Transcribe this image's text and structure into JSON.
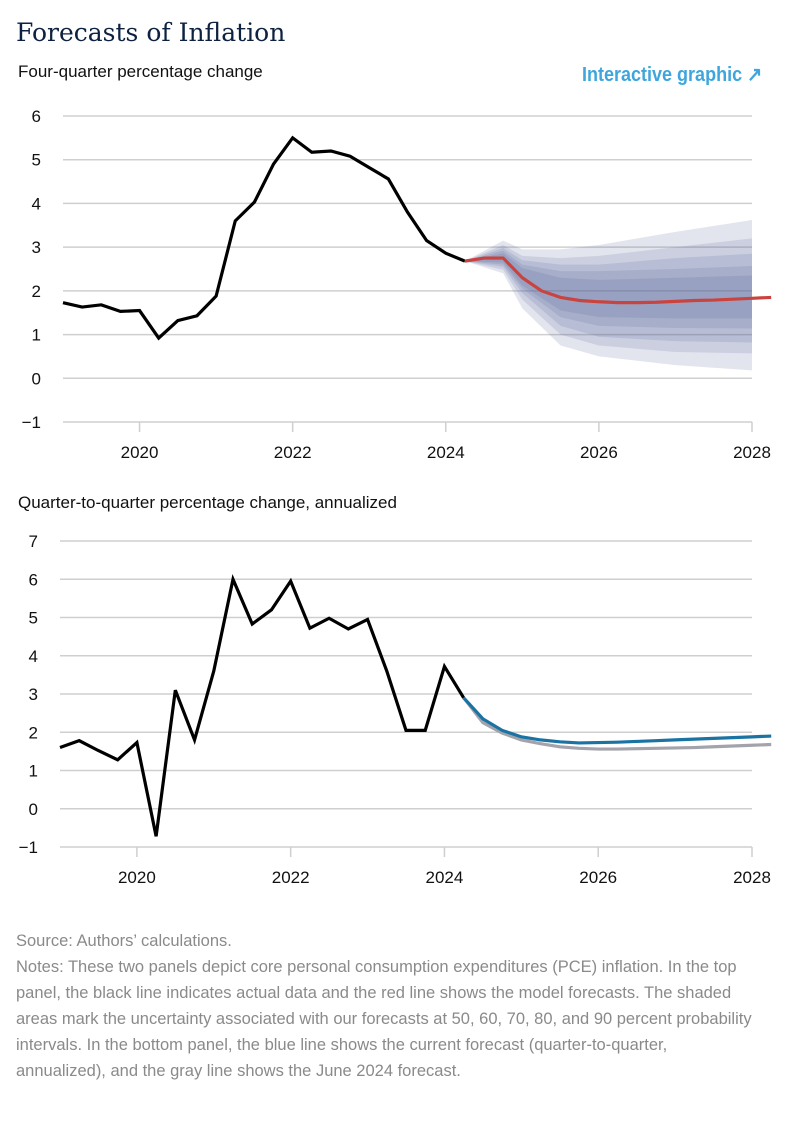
{
  "header": {
    "title": "Forecasts of Inflation",
    "link_label": "Interactive graphic",
    "link_icon": "arrow-up-right-icon",
    "link_color": "#3ea6dc"
  },
  "chart_data": [
    {
      "type": "line",
      "subtitle": "Four-quarter percentage change",
      "ylim": [
        -1,
        6
      ],
      "yticks": [
        "6",
        "5",
        "4",
        "3",
        "2",
        "1",
        "0",
        "−1"
      ],
      "ytick_values": [
        6,
        5,
        4,
        3,
        2,
        1,
        0,
        -1
      ],
      "xlim": [
        2019,
        2028
      ],
      "xticks": [
        "2020",
        "2022",
        "2024",
        "2026",
        "2028"
      ],
      "xtick_values": [
        2020,
        2022,
        2024,
        2026,
        2028
      ],
      "grid": true,
      "series": [
        {
          "name": "Actual",
          "color": "#000000",
          "x_start": 2019.0,
          "step": 0.25,
          "values": [
            1.73,
            1.63,
            1.68,
            1.53,
            1.55,
            0.92,
            1.32,
            1.43,
            1.88,
            3.6,
            4.03,
            4.9,
            5.5,
            5.17,
            5.2,
            5.08,
            4.82,
            4.56,
            3.8,
            3.15,
            2.86,
            2.68
          ]
        },
        {
          "name": "Model forecast",
          "color": "#c9443f",
          "x_start": 2024.25,
          "step": 0.25,
          "values": [
            2.68,
            2.75,
            2.75,
            2.3,
            2.0,
            1.85,
            1.78,
            1.75,
            1.73,
            1.73,
            1.74,
            1.76,
            1.78,
            1.79,
            1.81,
            1.83,
            1.85
          ]
        }
      ],
      "bands": {
        "color": "#5b6399",
        "x": [
          2024.25,
          2024.75,
          2025.0,
          2025.5,
          2026.0,
          2027.0,
          2028.0
        ],
        "intervals": [
          {
            "level": 90,
            "lower": [
              2.68,
              2.4,
              1.6,
              0.75,
              0.5,
              0.3,
              0.18
            ],
            "upper": [
              2.68,
              3.15,
              2.95,
              2.95,
              3.05,
              3.35,
              3.62
            ]
          },
          {
            "level": 80,
            "lower": [
              2.68,
              2.48,
              1.8,
              1.0,
              0.75,
              0.6,
              0.57
            ],
            "upper": [
              2.68,
              3.05,
              2.8,
              2.75,
              2.8,
              3.0,
              3.2
            ]
          },
          {
            "level": 70,
            "lower": [
              2.68,
              2.55,
              1.95,
              1.2,
              0.95,
              0.85,
              0.82
            ],
            "upper": [
              2.68,
              2.98,
              2.7,
              2.6,
              2.6,
              2.75,
              2.85
            ]
          },
          {
            "level": 60,
            "lower": [
              2.68,
              2.6,
              2.05,
              1.4,
              1.2,
              1.15,
              1.14
            ],
            "upper": [
              2.68,
              2.92,
              2.6,
              2.45,
              2.45,
              2.5,
              2.57
            ]
          },
          {
            "level": 50,
            "lower": [
              2.68,
              2.65,
              2.12,
              1.55,
              1.4,
              1.37,
              1.37
            ],
            "upper": [
              2.68,
              2.86,
              2.52,
              2.3,
              2.25,
              2.3,
              2.35
            ]
          }
        ]
      }
    },
    {
      "type": "line",
      "subtitle": "Quarter-to-quarter percentage change, annualized",
      "ylim": [
        -1,
        7
      ],
      "yticks": [
        "7",
        "6",
        "5",
        "4",
        "3",
        "2",
        "1",
        "0",
        "−1"
      ],
      "ytick_values": [
        7,
        6,
        5,
        4,
        3,
        2,
        1,
        0,
        -1
      ],
      "xlim": [
        2019,
        2028
      ],
      "xticks": [
        "2020",
        "2022",
        "2024",
        "2026",
        "2028"
      ],
      "xtick_values": [
        2020,
        2022,
        2024,
        2026,
        2028
      ],
      "grid": true,
      "series": [
        {
          "name": "Actual",
          "color": "#000000",
          "x_start": 2019.0,
          "step": 0.25,
          "values": [
            1.6,
            1.78,
            1.52,
            1.28,
            1.73,
            -0.72,
            3.1,
            1.8,
            3.6,
            6.0,
            4.83,
            5.2,
            5.95,
            4.72,
            4.98,
            4.7,
            4.95,
            3.6,
            2.05,
            2.05,
            3.72,
            2.9
          ]
        },
        {
          "name": "June 2024 forecast",
          "color": "#a3a3ab",
          "x_start": 2024.25,
          "step": 0.25,
          "values": [
            2.9,
            2.25,
            1.98,
            1.8,
            1.7,
            1.62,
            1.58,
            1.56,
            1.56,
            1.57,
            1.58,
            1.59,
            1.6,
            1.62,
            1.64,
            1.66,
            1.68
          ]
        },
        {
          "name": "Current forecast",
          "color": "#1a73a3",
          "x_start": 2024.25,
          "step": 0.25,
          "values": [
            2.9,
            2.35,
            2.05,
            1.88,
            1.8,
            1.75,
            1.72,
            1.73,
            1.74,
            1.76,
            1.78,
            1.8,
            1.82,
            1.84,
            1.86,
            1.88,
            1.9
          ]
        }
      ]
    }
  ],
  "footer": {
    "source": "Source: Authors’ calculations.",
    "notes": "Notes: These two panels depict core personal consumption expenditures (PCE) inflation. In the top panel, the black line indicates actual data and the red line shows the model forecasts. The shaded areas mark the uncertainty associated with our forecasts at 50, 60, 70, 80, and 90 percent probability intervals. In the bottom panel, the blue line shows the current forecast (quarter-to-quarter, annualized), and the gray line shows the June 2024 forecast."
  }
}
